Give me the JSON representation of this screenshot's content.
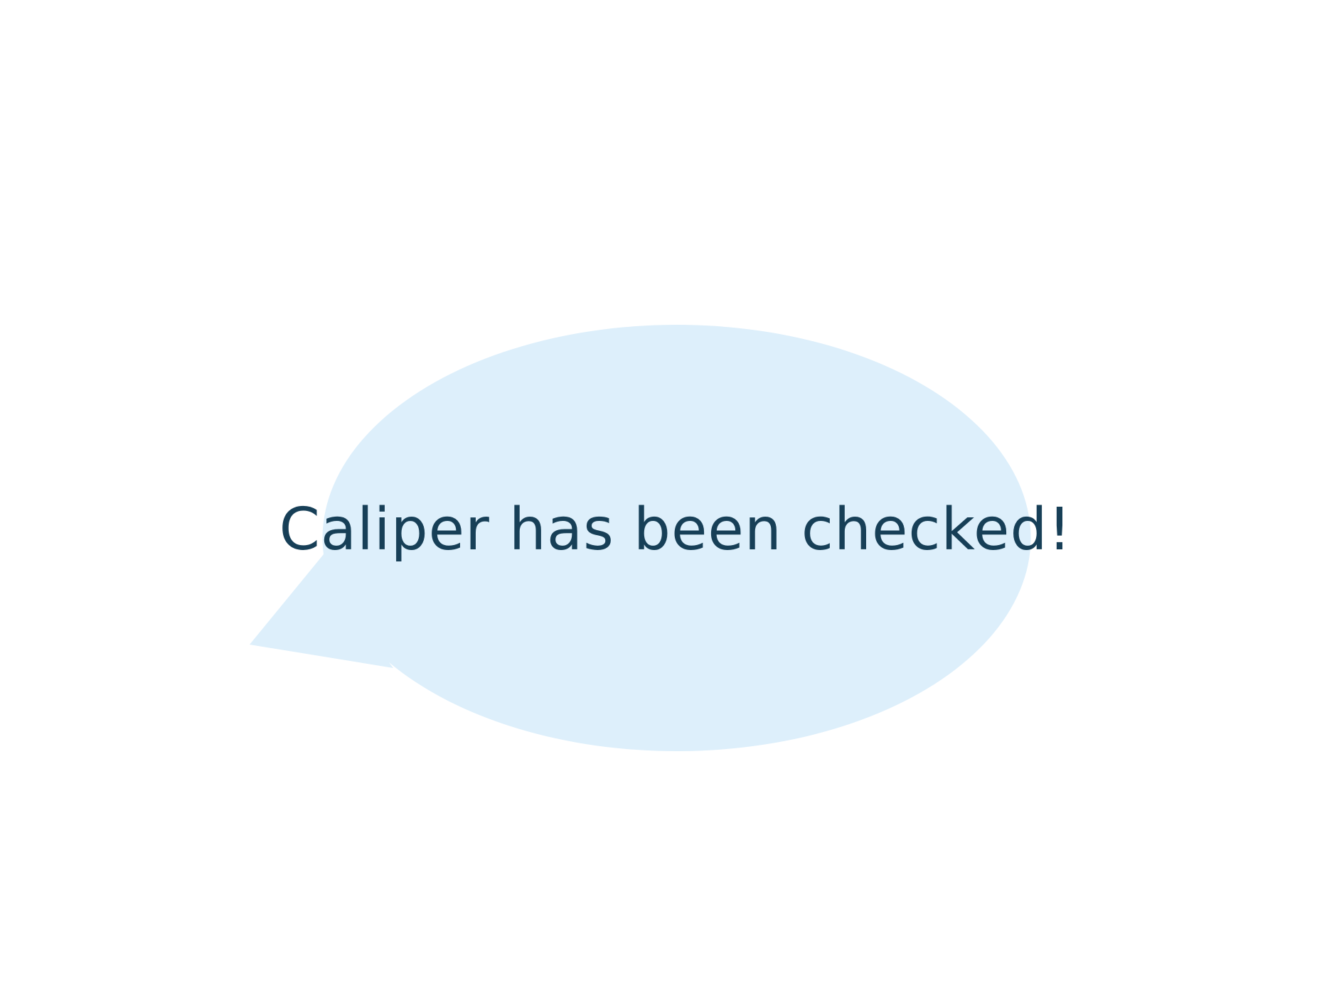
{
  "speech_bubble": {
    "message": "Caliper has been checked!",
    "fill_color": "#ddeffb",
    "text_color": "#173f57"
  },
  "background_color": "#ffffff"
}
